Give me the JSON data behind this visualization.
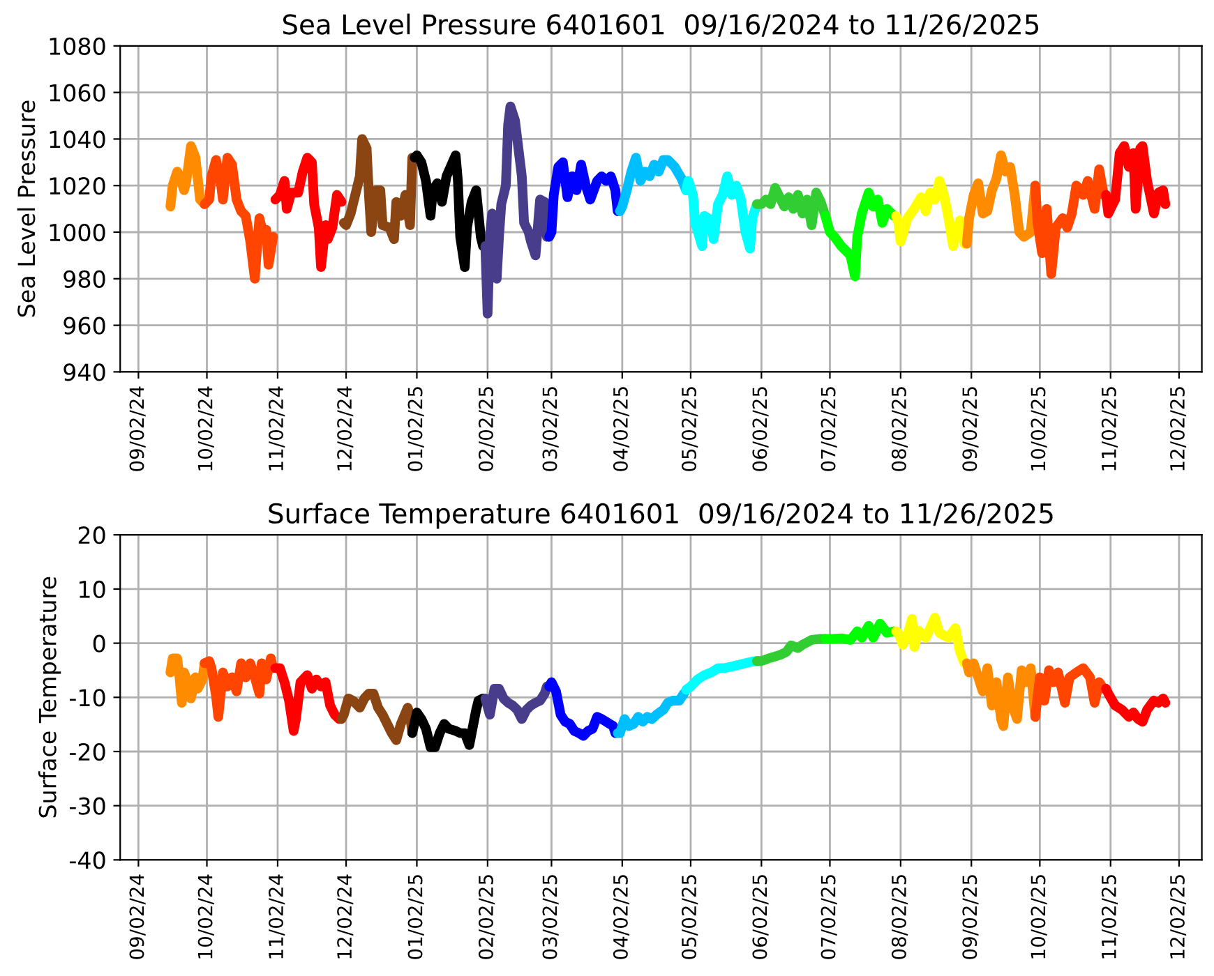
{
  "chart_data": [
    {
      "type": "line",
      "title": "Sea Level Pressure 6401601  09/16/2024 to 11/26/2025",
      "ylabel": "Sea Level Pressure",
      "xlim": [
        "2024-08-25",
        "2025-12-12"
      ],
      "ylim": [
        940,
        1080
      ],
      "yticks": [
        940,
        960,
        980,
        1000,
        1020,
        1040,
        1060,
        1080
      ],
      "xticks": [
        {
          "value": "2024-09-02",
          "label": "09/02/24"
        },
        {
          "value": "2024-10-02",
          "label": "10/02/24"
        },
        {
          "value": "2024-11-02",
          "label": "11/02/24"
        },
        {
          "value": "2024-12-02",
          "label": "12/02/24"
        },
        {
          "value": "2025-01-02",
          "label": "01/02/25"
        },
        {
          "value": "2025-02-02",
          "label": "02/02/25"
        },
        {
          "value": "2025-03-02",
          "label": "03/02/25"
        },
        {
          "value": "2025-04-02",
          "label": "04/02/25"
        },
        {
          "value": "2025-05-02",
          "label": "05/02/25"
        },
        {
          "value": "2025-06-02",
          "label": "06/02/25"
        },
        {
          "value": "2025-07-02",
          "label": "07/02/25"
        },
        {
          "value": "2025-08-02",
          "label": "08/02/25"
        },
        {
          "value": "2025-09-02",
          "label": "09/02/25"
        },
        {
          "value": "2025-10-02",
          "label": "10/02/25"
        },
        {
          "value": "2025-11-02",
          "label": "11/02/25"
        },
        {
          "value": "2025-12-02",
          "label": "12/02/25"
        }
      ],
      "grid": true,
      "marker": "none",
      "line_style": "solid",
      "series": [
        {
          "color": "#ff8c00",
          "x": [
            "2024-09-16",
            "2024-09-17",
            "2024-09-19",
            "2024-09-20",
            "2024-09-22",
            "2024-09-23",
            "2024-09-25",
            "2024-09-27",
            "2024-09-29",
            "2024-10-01"
          ],
          "values": [
            1011,
            1020,
            1026,
            1024,
            1018,
            1022,
            1037,
            1032,
            1014,
            1012
          ]
        },
        {
          "color": "#ff4500",
          "x": [
            "2024-10-01",
            "2024-10-03",
            "2024-10-04",
            "2024-10-06",
            "2024-10-08",
            "2024-10-09",
            "2024-10-11",
            "2024-10-13",
            "2024-10-15",
            "2024-10-17",
            "2024-10-19",
            "2024-10-21",
            "2024-10-23",
            "2024-10-24",
            "2024-10-25",
            "2024-10-27",
            "2024-10-28",
            "2024-10-29",
            "2024-10-31"
          ],
          "values": [
            1012,
            1014,
            1024,
            1031,
            1022,
            1014,
            1032,
            1029,
            1014,
            1009,
            1007,
            996,
            980,
            994,
            1006,
            998,
            1001,
            986,
            998
          ]
        },
        {
          "color": "#ff0000",
          "x": [
            "2024-11-01",
            "2024-11-03",
            "2024-11-05",
            "2024-11-06",
            "2024-11-08",
            "2024-11-11",
            "2024-11-13",
            "2024-11-15",
            "2024-11-17",
            "2024-11-18",
            "2024-11-20",
            "2024-11-21",
            "2024-11-23",
            "2024-11-24",
            "2024-11-26",
            "2024-11-28",
            "2024-11-30"
          ],
          "values": [
            1014,
            1016,
            1022,
            1010,
            1017,
            1017,
            1026,
            1032,
            1030,
            1012,
            1002,
            985,
            1003,
            997,
            1002,
            1016,
            1013
          ]
        },
        {
          "color": "#8b4513",
          "x": [
            "2024-12-01",
            "2024-12-02",
            "2024-12-04",
            "2024-12-06",
            "2024-12-08",
            "2024-12-09",
            "2024-12-11",
            "2024-12-12",
            "2024-12-13",
            "2024-12-15",
            "2024-12-17",
            "2024-12-18",
            "2024-12-21",
            "2024-12-23",
            "2024-12-24",
            "2024-12-26",
            "2024-12-28",
            "2024-12-30",
            "2024-12-31"
          ],
          "values": [
            1004,
            1003,
            1008,
            1016,
            1024,
            1040,
            1036,
            1016,
            1000,
            1018,
            1018,
            1003,
            1002,
            997,
            1013,
            1007,
            1016,
            1003,
            1032
          ]
        },
        {
          "color": "#000000",
          "x": [
            "2025-01-01",
            "2025-01-02",
            "2025-01-04",
            "2025-01-06",
            "2025-01-08",
            "2025-01-09",
            "2025-01-11",
            "2025-01-13",
            "2025-01-15",
            "2025-01-19",
            "2025-01-20",
            "2025-01-21",
            "2025-01-23",
            "2025-01-24",
            "2025-01-26",
            "2025-01-28",
            "2025-01-30",
            "2025-01-31"
          ],
          "values": [
            1032,
            1033,
            1030,
            1022,
            1007,
            1018,
            1021,
            1013,
            1024,
            1033,
            1022,
            998,
            985,
            1002,
            1013,
            1018,
            998,
            994
          ]
        },
        {
          "color": "#483d8b",
          "x": [
            "2025-02-01",
            "2025-02-02",
            "2025-02-03",
            "2025-02-04",
            "2025-02-05",
            "2025-02-06",
            "2025-02-07",
            "2025-02-08",
            "2025-02-10",
            "2025-02-11",
            "2025-02-12",
            "2025-02-14",
            "2025-02-15",
            "2025-02-17",
            "2025-02-18",
            "2025-02-20",
            "2025-02-21",
            "2025-02-23",
            "2025-02-24",
            "2025-02-25",
            "2025-02-27",
            "2025-02-28"
          ],
          "values": [
            994,
            965,
            998,
            1008,
            992,
            980,
            998,
            1012,
            1020,
            1046,
            1054,
            1048,
            1040,
            1024,
            1004,
            1000,
            996,
            990,
            1002,
            1014,
            1013,
            998
          ]
        },
        {
          "color": "#0000ff",
          "x": [
            "2025-03-01",
            "2025-03-02",
            "2025-03-03",
            "2025-03-05",
            "2025-03-07",
            "2025-03-09",
            "2025-03-11",
            "2025-03-13",
            "2025-03-15",
            "2025-03-17",
            "2025-03-19",
            "2025-03-22",
            "2025-03-24",
            "2025-03-26",
            "2025-03-28",
            "2025-03-30",
            "2025-03-31"
          ],
          "values": [
            998,
            1000,
            1016,
            1028,
            1030,
            1015,
            1024,
            1018,
            1029,
            1020,
            1014,
            1022,
            1024,
            1022,
            1024,
            1018,
            1009
          ]
        },
        {
          "color": "#00bfff",
          "x": [
            "2025-04-01",
            "2025-04-02",
            "2025-04-04",
            "2025-04-06",
            "2025-04-08",
            "2025-04-10",
            "2025-04-12",
            "2025-04-14",
            "2025-04-16",
            "2025-04-18",
            "2025-04-20",
            "2025-04-22",
            "2025-04-25",
            "2025-04-28",
            "2025-04-30"
          ],
          "values": [
            1009,
            1011,
            1018,
            1026,
            1032,
            1022,
            1026,
            1024,
            1029,
            1026,
            1031,
            1031,
            1028,
            1023,
            1018
          ]
        },
        {
          "color": "#00ffff",
          "x": [
            "2025-04-30",
            "2025-05-01",
            "2025-05-03",
            "2025-05-04",
            "2025-05-07",
            "2025-05-08",
            "2025-05-11",
            "2025-05-12",
            "2025-05-14",
            "2025-05-16",
            "2025-05-18",
            "2025-05-20",
            "2025-05-22",
            "2025-05-24",
            "2025-05-26",
            "2025-05-28",
            "2025-05-29",
            "2025-05-31"
          ],
          "values": [
            1018,
            1022,
            1016,
            1004,
            994,
            1007,
            1005,
            997,
            1012,
            1016,
            1024,
            1016,
            1020,
            1014,
            1000,
            993,
            1006,
            1012
          ]
        },
        {
          "color": "#32cd32",
          "x": [
            "2025-05-31",
            "2025-06-02",
            "2025-06-04",
            "2025-06-06",
            "2025-06-08",
            "2025-06-10",
            "2025-06-12",
            "2025-06-14",
            "2025-06-16",
            "2025-06-18",
            "2025-06-20",
            "2025-06-22",
            "2025-06-24",
            "2025-06-26",
            "2025-06-28",
            "2025-06-30"
          ],
          "values": [
            1012,
            1012,
            1014,
            1012,
            1019,
            1015,
            1011,
            1015,
            1010,
            1016,
            1008,
            1014,
            1003,
            1017,
            1013,
            1007
          ]
        },
        {
          "color": "#00ff00",
          "x": [
            "2025-06-30",
            "2025-07-02",
            "2025-07-04",
            "2025-07-07",
            "2025-07-09",
            "2025-07-11",
            "2025-07-13",
            "2025-07-14",
            "2025-07-16",
            "2025-07-19",
            "2025-07-21",
            "2025-07-23",
            "2025-07-25",
            "2025-07-27",
            "2025-07-30"
          ],
          "values": [
            1007,
            1000,
            998,
            994,
            992,
            990,
            981,
            998,
            1008,
            1017,
            1011,
            1014,
            1004,
            1010,
            1007
          ]
        },
        {
          "color": "#ffff00",
          "x": [
            "2025-07-31",
            "2025-08-01",
            "2025-08-02",
            "2025-08-05",
            "2025-08-08",
            "2025-08-11",
            "2025-08-13",
            "2025-08-15",
            "2025-08-17",
            "2025-08-19",
            "2025-08-21",
            "2025-08-23",
            "2025-08-25",
            "2025-08-28",
            "2025-08-30"
          ],
          "values": [
            1007,
            1004,
            996,
            1006,
            1010,
            1015,
            1009,
            1017,
            1014,
            1022,
            1016,
            1006,
            994,
            1005,
            995
          ]
        },
        {
          "color": "#ff8c00",
          "x": [
            "2025-08-31",
            "2025-09-01",
            "2025-09-03",
            "2025-09-05",
            "2025-09-07",
            "2025-09-09",
            "2025-09-11",
            "2025-09-13",
            "2025-09-15",
            "2025-09-17",
            "2025-09-19",
            "2025-09-21",
            "2025-09-23",
            "2025-09-25",
            "2025-09-28",
            "2025-09-30"
          ],
          "values": [
            995,
            1006,
            1016,
            1021,
            1008,
            1009,
            1018,
            1023,
            1033,
            1026,
            1028,
            1016,
            1000,
            998,
            1000,
            1020
          ]
        },
        {
          "color": "#ff4500",
          "x": [
            "2025-09-30",
            "2025-10-01",
            "2025-10-03",
            "2025-10-05",
            "2025-10-07",
            "2025-10-09",
            "2025-10-12",
            "2025-10-14",
            "2025-10-16",
            "2025-10-18",
            "2025-10-21",
            "2025-10-23",
            "2025-10-26",
            "2025-10-28",
            "2025-10-30"
          ],
          "values": [
            1020,
            1004,
            991,
            1010,
            982,
            1002,
            1006,
            1002,
            1008,
            1020,
            1016,
            1022,
            1010,
            1027,
            1016
          ]
        },
        {
          "color": "#ff0000",
          "x": [
            "2025-10-31",
            "2025-11-01",
            "2025-11-04",
            "2025-11-06",
            "2025-11-08",
            "2025-11-10",
            "2025-11-12",
            "2025-11-13",
            "2025-11-15",
            "2025-11-16",
            "2025-11-18",
            "2025-11-21",
            "2025-11-23",
            "2025-11-25",
            "2025-11-26"
          ],
          "values": [
            1016,
            1008,
            1014,
            1034,
            1037,
            1028,
            1034,
            1010,
            1036,
            1037,
            1022,
            1008,
            1017,
            1018,
            1012
          ]
        }
      ]
    },
    {
      "type": "line",
      "title": "Surface Temperature 6401601  09/16/2024 to 11/26/2025",
      "ylabel": "Surface Temperature",
      "xlim": [
        "2024-08-25",
        "2025-12-12"
      ],
      "ylim": [
        -40,
        20
      ],
      "yticks": [
        -40,
        -30,
        -20,
        -10,
        0,
        10,
        20
      ],
      "xticks": [
        {
          "value": "2024-09-02",
          "label": "09/02/24"
        },
        {
          "value": "2024-10-02",
          "label": "10/02/24"
        },
        {
          "value": "2024-11-02",
          "label": "11/02/24"
        },
        {
          "value": "2024-12-02",
          "label": "12/02/24"
        },
        {
          "value": "2025-01-02",
          "label": "01/02/25"
        },
        {
          "value": "2025-02-02",
          "label": "02/02/25"
        },
        {
          "value": "2025-03-02",
          "label": "03/02/25"
        },
        {
          "value": "2025-04-02",
          "label": "04/02/25"
        },
        {
          "value": "2025-05-02",
          "label": "05/02/25"
        },
        {
          "value": "2025-06-02",
          "label": "06/02/25"
        },
        {
          "value": "2025-07-02",
          "label": "07/02/25"
        },
        {
          "value": "2025-08-02",
          "label": "08/02/25"
        },
        {
          "value": "2025-09-02",
          "label": "09/02/25"
        },
        {
          "value": "2025-10-02",
          "label": "10/02/25"
        },
        {
          "value": "2025-11-02",
          "label": "11/02/25"
        },
        {
          "value": "2025-12-02",
          "label": "12/02/25"
        }
      ],
      "grid": true,
      "marker": "none",
      "line_style": "solid",
      "series": [
        {
          "color": "#ff8c00",
          "x": [
            "2024-09-16",
            "2024-09-17",
            "2024-09-19",
            "2024-09-20",
            "2024-09-21",
            "2024-09-22",
            "2024-09-24",
            "2024-09-25",
            "2024-09-27",
            "2024-09-28",
            "2024-09-30",
            "2024-10-01"
          ],
          "values": [
            -5.4,
            -2.8,
            -2.8,
            -6.3,
            -11,
            -5.4,
            -7.6,
            -10.2,
            -6.3,
            -8.4,
            -6.7,
            -3.7
          ]
        },
        {
          "color": "#ff4500",
          "x": [
            "2024-10-01",
            "2024-10-03",
            "2024-10-04",
            "2024-10-06",
            "2024-10-07",
            "2024-10-09",
            "2024-10-11",
            "2024-10-13",
            "2024-10-15",
            "2024-10-17",
            "2024-10-19",
            "2024-10-21",
            "2024-10-23",
            "2024-10-25",
            "2024-10-26",
            "2024-10-28",
            "2024-10-30",
            "2024-10-31"
          ],
          "values": [
            -3.7,
            -3.3,
            -4.6,
            -9.7,
            -13.6,
            -5.4,
            -8,
            -6.3,
            -8.9,
            -3.7,
            -6.3,
            -3.7,
            -6.3,
            -9.3,
            -3.7,
            -6.7,
            -2.8,
            -4.6
          ]
        },
        {
          "color": "#ff0000",
          "x": [
            "2024-11-01",
            "2024-11-03",
            "2024-11-05",
            "2024-11-07",
            "2024-11-09",
            "2024-11-10",
            "2024-11-12",
            "2024-11-15",
            "2024-11-17",
            "2024-11-19",
            "2024-11-21",
            "2024-11-23",
            "2024-11-25",
            "2024-11-27",
            "2024-11-29"
          ],
          "values": [
            -4.6,
            -4.6,
            -7.2,
            -10.6,
            -16.2,
            -14,
            -7.2,
            -5.9,
            -8.4,
            -6.7,
            -8,
            -7.2,
            -11.5,
            -13.2,
            -14
          ]
        },
        {
          "color": "#8b4513",
          "x": [
            "2024-11-30",
            "2024-12-01",
            "2024-12-03",
            "2024-12-05",
            "2024-12-08",
            "2024-12-10",
            "2024-12-12",
            "2024-12-14",
            "2024-12-16",
            "2024-12-18",
            "2024-12-20",
            "2024-12-22",
            "2024-12-24",
            "2024-12-26",
            "2024-12-29",
            "2024-12-30",
            "2024-12-31"
          ],
          "values": [
            -14,
            -13.2,
            -10.2,
            -10.6,
            -11.9,
            -10.2,
            -9.3,
            -9.3,
            -11.9,
            -13.2,
            -14.9,
            -16.6,
            -17.9,
            -14.9,
            -11.9,
            -13.2,
            -16.6
          ]
        },
        {
          "color": "#000000",
          "x": [
            "2024-12-31",
            "2025-01-02",
            "2025-01-04",
            "2025-01-06",
            "2025-01-08",
            "2025-01-10",
            "2025-01-12",
            "2025-01-14",
            "2025-01-16",
            "2025-01-19",
            "2025-01-21",
            "2025-01-23",
            "2025-01-25",
            "2025-01-26",
            "2025-01-28",
            "2025-01-29",
            "2025-01-31"
          ],
          "values": [
            -16.6,
            -12.8,
            -14,
            -15.8,
            -19.2,
            -19.2,
            -16.6,
            -14.9,
            -15.8,
            -16.2,
            -16.6,
            -16.6,
            -18.8,
            -16.6,
            -12.3,
            -10.6,
            -10.2
          ]
        },
        {
          "color": "#483d8b",
          "x": [
            "2025-02-01",
            "2025-02-03",
            "2025-02-05",
            "2025-02-07",
            "2025-02-09",
            "2025-02-11",
            "2025-02-13",
            "2025-02-15",
            "2025-02-17",
            "2025-02-19",
            "2025-02-21",
            "2025-02-23",
            "2025-02-25",
            "2025-02-27",
            "2025-02-28"
          ],
          "values": [
            -10.2,
            -13.2,
            -8.4,
            -8.4,
            -10.2,
            -11,
            -11.5,
            -12.3,
            -14,
            -12.3,
            -11.5,
            -11,
            -10.6,
            -9.3,
            -8
          ]
        },
        {
          "color": "#0000ff",
          "x": [
            "2025-03-01",
            "2025-03-02",
            "2025-03-04",
            "2025-03-06",
            "2025-03-08",
            "2025-03-10",
            "2025-03-12",
            "2025-03-14",
            "2025-03-16",
            "2025-03-18",
            "2025-03-20",
            "2025-03-22",
            "2025-03-24",
            "2025-03-26",
            "2025-03-29",
            "2025-03-30"
          ],
          "values": [
            -8,
            -7.2,
            -8.9,
            -13.2,
            -14.5,
            -14.9,
            -16.2,
            -16.6,
            -17.1,
            -16.2,
            -15.8,
            -13.6,
            -14,
            -14.5,
            -15.3,
            -16.6
          ]
        },
        {
          "color": "#00bfff",
          "x": [
            "2025-03-31",
            "2025-04-01",
            "2025-04-03",
            "2025-04-05",
            "2025-04-07",
            "2025-04-09",
            "2025-04-11",
            "2025-04-13",
            "2025-04-15",
            "2025-04-17",
            "2025-04-20",
            "2025-04-22",
            "2025-04-24",
            "2025-04-27",
            "2025-04-29"
          ],
          "values": [
            -16.6,
            -16.6,
            -14,
            -15.3,
            -14.9,
            -13.6,
            -14.5,
            -13.6,
            -14,
            -13.2,
            -12.3,
            -11,
            -10.6,
            -10.6,
            -9.3
          ]
        },
        {
          "color": "#00ffff",
          "x": [
            "2025-04-30",
            "2025-05-02",
            "2025-05-05",
            "2025-05-08",
            "2025-05-11",
            "2025-05-14",
            "2025-05-17",
            "2025-05-20",
            "2025-05-23",
            "2025-05-26",
            "2025-05-29",
            "2025-05-31"
          ],
          "values": [
            -8.6,
            -8,
            -6.7,
            -5.9,
            -5.4,
            -4.6,
            -4.6,
            -4.3,
            -4,
            -3.7,
            -3.4,
            -3.3
          ]
        },
        {
          "color": "#32cd32",
          "x": [
            "2025-05-31",
            "2025-06-02",
            "2025-06-06",
            "2025-06-10",
            "2025-06-13",
            "2025-06-15",
            "2025-06-18",
            "2025-06-20",
            "2025-06-24",
            "2025-06-28",
            "2025-06-30"
          ],
          "values": [
            -3.3,
            -3.3,
            -2.7,
            -2.2,
            -1.6,
            -0.4,
            -0.9,
            -0.3,
            0.6,
            0.8,
            0.8
          ]
        },
        {
          "color": "#00ff00",
          "x": [
            "2025-06-30",
            "2025-07-03",
            "2025-07-07",
            "2025-07-11",
            "2025-07-14",
            "2025-07-16",
            "2025-07-19",
            "2025-07-21",
            "2025-07-24",
            "2025-07-27",
            "2025-07-30"
          ],
          "values": [
            0.8,
            0.8,
            0.9,
            0.6,
            2.2,
            1,
            3.2,
            1,
            3.6,
            1.9,
            2.2
          ]
        },
        {
          "color": "#ffff00",
          "x": [
            "2025-07-31",
            "2025-08-01",
            "2025-08-03",
            "2025-08-05",
            "2025-08-07",
            "2025-08-08",
            "2025-08-10",
            "2025-08-13",
            "2025-08-15",
            "2025-08-17",
            "2025-08-19",
            "2025-08-23",
            "2025-08-26",
            "2025-08-28",
            "2025-08-30"
          ],
          "values": [
            2.2,
            1.9,
            -0.3,
            1.5,
            4.5,
            -0.7,
            2.3,
            1,
            2.8,
            4.7,
            1.9,
            1,
            2.8,
            -1.6,
            -3.7
          ]
        },
        {
          "color": "#ff8c00",
          "x": [
            "2025-08-31",
            "2025-09-01",
            "2025-09-03",
            "2025-09-05",
            "2025-09-07",
            "2025-09-09",
            "2025-09-11",
            "2025-09-13",
            "2025-09-15",
            "2025-09-16",
            "2025-09-18",
            "2025-09-20",
            "2025-09-22",
            "2025-09-24",
            "2025-09-26",
            "2025-09-28",
            "2025-09-30"
          ],
          "values": [
            -3.7,
            -5.4,
            -3.7,
            -6.3,
            -8.9,
            -4.6,
            -11.5,
            -7.2,
            -14,
            -15.3,
            -6.3,
            -11.5,
            -14,
            -5,
            -7.2,
            -4.6,
            -13.6
          ]
        },
        {
          "color": "#ff4500",
          "x": [
            "2025-09-30",
            "2025-10-02",
            "2025-10-04",
            "2025-10-06",
            "2025-10-08",
            "2025-10-10",
            "2025-10-13",
            "2025-10-15",
            "2025-10-18",
            "2025-10-21",
            "2025-10-24",
            "2025-10-26",
            "2025-10-28",
            "2025-10-30"
          ],
          "values": [
            -13.6,
            -6.3,
            -10.6,
            -5,
            -7.2,
            -5.4,
            -11,
            -6.3,
            -5.4,
            -4.6,
            -6.3,
            -11,
            -7.2,
            -8.4
          ]
        },
        {
          "color": "#ff0000",
          "x": [
            "2025-10-31",
            "2025-11-01",
            "2025-11-04",
            "2025-11-07",
            "2025-11-10",
            "2025-11-12",
            "2025-11-14",
            "2025-11-16",
            "2025-11-18",
            "2025-11-21",
            "2025-11-23",
            "2025-11-25",
            "2025-11-26"
          ],
          "values": [
            -8.4,
            -9.3,
            -11.5,
            -12.3,
            -13.6,
            -12.8,
            -14,
            -14.5,
            -12.3,
            -10.6,
            -11,
            -10.2,
            -11
          ]
        }
      ]
    }
  ]
}
